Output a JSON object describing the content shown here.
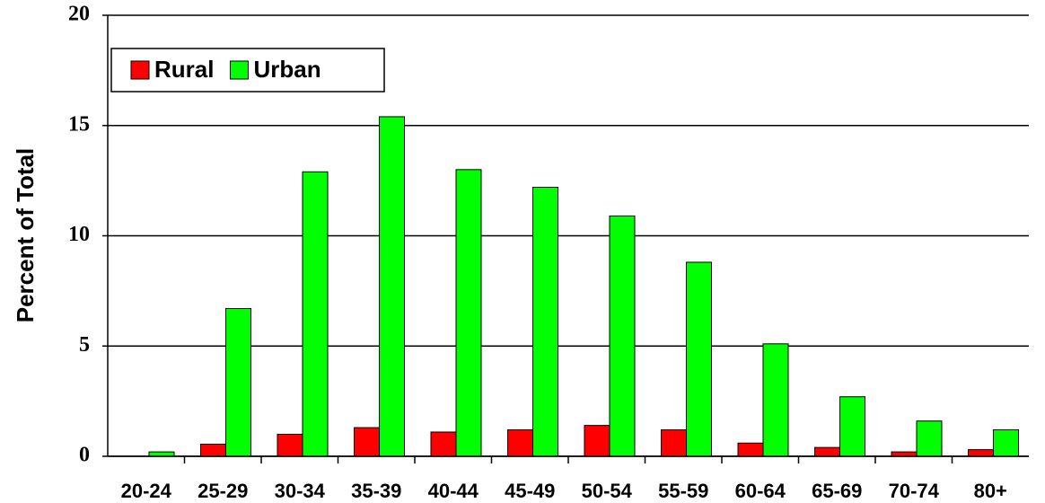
{
  "chart_data": {
    "type": "bar",
    "y_label": "Percent of Total",
    "categories": [
      "20-24",
      "25-29",
      "30-34",
      "35-39",
      "40-44",
      "45-49",
      "50-54",
      "55-59",
      "60-64",
      "65-69",
      "70-74",
      "80+"
    ],
    "series": [
      {
        "name": "Rural",
        "color": "#ff0000",
        "values": [
          0,
          0.55,
          1.0,
          1.3,
          1.1,
          1.2,
          1.4,
          1.2,
          0.6,
          0.4,
          0.2,
          0.3
        ]
      },
      {
        "name": "Urban",
        "color": "#00ff00",
        "values": [
          0.2,
          6.7,
          12.9,
          15.4,
          13.0,
          12.2,
          10.9,
          8.8,
          5.1,
          2.7,
          1.6,
          1.2
        ]
      }
    ],
    "ylim": [
      0,
      20
    ],
    "yticks": [
      0,
      5,
      10,
      15,
      20
    ],
    "grid": true,
    "legend": "upper left"
  }
}
